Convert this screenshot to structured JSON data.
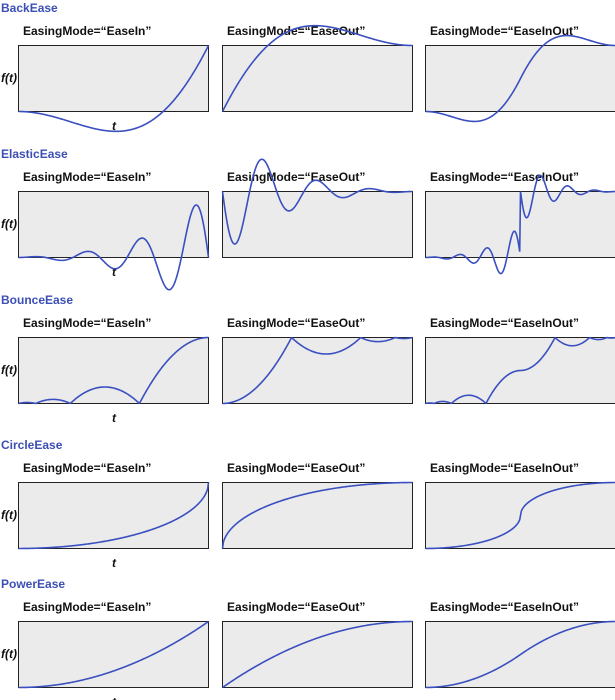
{
  "chart_data": {
    "type": "line",
    "curve_color": "#3a4fc0",
    "title_color": "#3c4fb5",
    "panel_fill": "#ebebeb",
    "x_axis_label": "t",
    "y_axis_label": "f(t)",
    "x_range": [
      0,
      1
    ],
    "modes": [
      "EasingMode=“EaseIn”",
      "EasingMode=“EaseOut”",
      "EasingMode=“EaseInOut”"
    ],
    "families": [
      {
        "name": "BackEase",
        "fn": "back"
      },
      {
        "name": "ElasticEase",
        "fn": "elastic"
      },
      {
        "name": "BounceEase",
        "fn": "bounce"
      },
      {
        "name": "CircleEase",
        "fn": "circle"
      },
      {
        "name": "PowerEase",
        "fn": "power"
      }
    ]
  }
}
